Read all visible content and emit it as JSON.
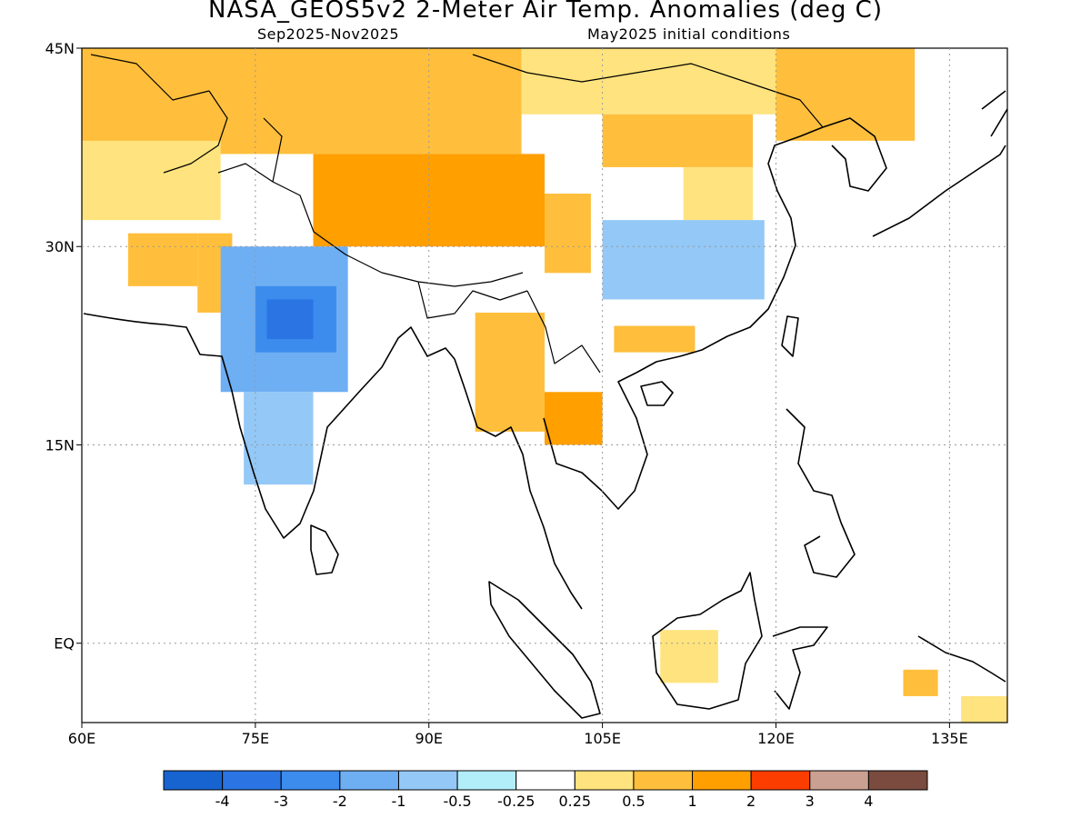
{
  "title": "NASA_GEOS5v2 2-Meter Air Temp. Anomalies (deg C)",
  "subtitle_left": "Sep2025-Nov2025",
  "subtitle_right": "May2025 initial conditions",
  "map": {
    "lon_range": [
      60,
      140
    ],
    "lat_range": [
      -6,
      45
    ],
    "grid": "dotted",
    "x_ticks": [
      {
        "value": 60,
        "label": "60E"
      },
      {
        "value": 75,
        "label": "75E"
      },
      {
        "value": 90,
        "label": "90E"
      },
      {
        "value": 105,
        "label": "105E"
      },
      {
        "value": 120,
        "label": "120E"
      },
      {
        "value": 135,
        "label": "135E"
      }
    ],
    "y_ticks": [
      {
        "value": 45,
        "label": "45N"
      },
      {
        "value": 30,
        "label": "30N"
      },
      {
        "value": 15,
        "label": "15N"
      },
      {
        "value": 0,
        "label": "EQ"
      }
    ]
  },
  "colorbar": {
    "colors": [
      "#1764d1",
      "#2a74e3",
      "#3b8ced",
      "#6eaef3",
      "#93c8f7",
      "#b2eefa",
      "#ffffff",
      "#ffe37e",
      "#ffbf3c",
      "#ff9f00",
      "#fb3e00",
      "#c9a091",
      "#7a4b3e"
    ],
    "labels": [
      "-4",
      "-3",
      "-2",
      "-1",
      "-0.5",
      "-0.25",
      "0.25",
      "0.5",
      "1",
      "2",
      "3",
      "4"
    ]
  },
  "regions": [
    {
      "lon": [
        60,
        98
      ],
      "lat": [
        37,
        45
      ],
      "color": "#ffbf3c"
    },
    {
      "lon": [
        98,
        122
      ],
      "lat": [
        40,
        45
      ],
      "color": "#ffe37e"
    },
    {
      "lon": [
        120,
        132
      ],
      "lat": [
        38,
        45
      ],
      "color": "#ffbf3c"
    },
    {
      "lon": [
        60,
        72
      ],
      "lat": [
        32,
        38
      ],
      "color": "#ffe37e"
    },
    {
      "lon": [
        64,
        70
      ],
      "lat": [
        27,
        31
      ],
      "color": "#ffbf3c"
    },
    {
      "lon": [
        70,
        73
      ],
      "lat": [
        25,
        31
      ],
      "color": "#ffbf3c"
    },
    {
      "lon": [
        80,
        100
      ],
      "lat": [
        30,
        37
      ],
      "color": "#ff9f00"
    },
    {
      "lon": [
        100,
        104
      ],
      "lat": [
        28,
        34
      ],
      "color": "#ffbf3c"
    },
    {
      "lon": [
        105,
        118
      ],
      "lat": [
        36,
        40
      ],
      "color": "#ffbf3c"
    },
    {
      "lon": [
        112,
        118
      ],
      "lat": [
        32,
        36
      ],
      "color": "#ffe37e"
    },
    {
      "lon": [
        105,
        119
      ],
      "lat": [
        26,
        32
      ],
      "color": "#93c8f7"
    },
    {
      "lon": [
        72,
        83
      ],
      "lat": [
        19,
        30
      ],
      "color": "#6eaef3"
    },
    {
      "lon": [
        75,
        82
      ],
      "lat": [
        22,
        27
      ],
      "color": "#3b8ced"
    },
    {
      "lon": [
        76,
        80
      ],
      "lat": [
        23,
        26
      ],
      "color": "#2a74e3"
    },
    {
      "lon": [
        74,
        80
      ],
      "lat": [
        12,
        19
      ],
      "color": "#93c8f7"
    },
    {
      "lon": [
        94,
        100
      ],
      "lat": [
        16,
        25
      ],
      "color": "#ffbf3c"
    },
    {
      "lon": [
        100,
        105
      ],
      "lat": [
        15,
        19
      ],
      "color": "#ff9f00"
    },
    {
      "lon": [
        106,
        113
      ],
      "lat": [
        22,
        24
      ],
      "color": "#ffbf3c"
    },
    {
      "lon": [
        110,
        115
      ],
      "lat": [
        -3,
        1
      ],
      "color": "#ffe37e"
    },
    {
      "lon": [
        131,
        134
      ],
      "lat": [
        -4,
        -2
      ],
      "color": "#ffbf3c"
    },
    {
      "lon": [
        136,
        140
      ],
      "lat": [
        -6,
        -4
      ],
      "color": "#ffe37e"
    }
  ]
}
